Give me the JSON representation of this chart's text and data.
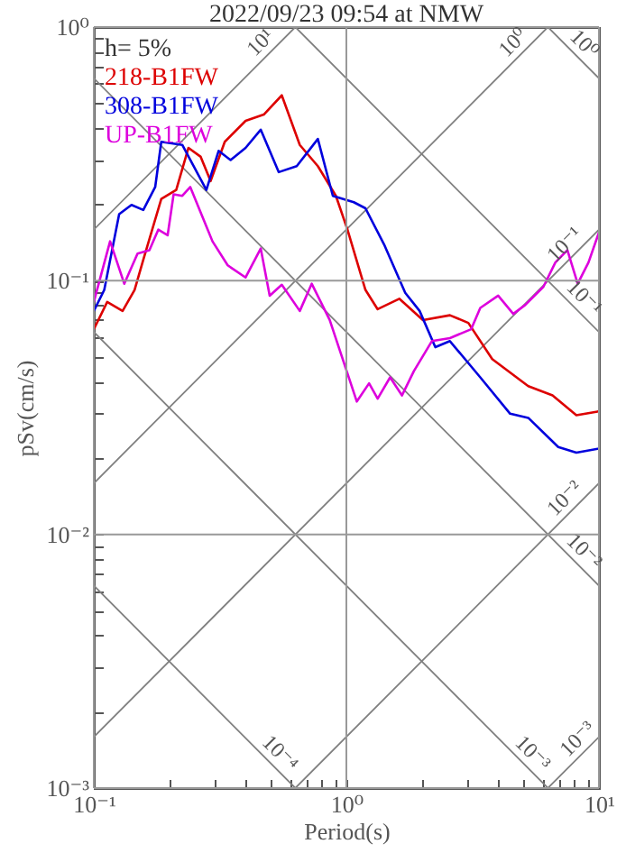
{
  "chart_data": {
    "type": "line",
    "title": "2022/09/23 09:54 at NMW",
    "xlabel": "Period(s)",
    "ylabel": "pSv(cm/s)",
    "legend_title": "h= 5%",
    "legend": "top left",
    "grid": true,
    "log": "xy",
    "xlim": [
      0.1,
      10
    ],
    "ylim": [
      0.001,
      1
    ],
    "xticks": [
      {
        "value": 0.1,
        "label": "10⁻¹"
      },
      {
        "value": 0.2,
        "label": null
      },
      {
        "value": 0.3,
        "label": null
      },
      {
        "value": 0.4,
        "label": null
      },
      {
        "value": 0.5,
        "label": null
      },
      {
        "value": 0.6,
        "label": null
      },
      {
        "value": 0.7,
        "label": null
      },
      {
        "value": 0.8,
        "label": null
      },
      {
        "value": 0.9,
        "label": null
      },
      {
        "value": 1,
        "label": "10⁰"
      },
      {
        "value": 2,
        "label": null
      },
      {
        "value": 3,
        "label": null
      },
      {
        "value": 4,
        "label": null
      },
      {
        "value": 5,
        "label": null
      },
      {
        "value": 6,
        "label": null
      },
      {
        "value": 7,
        "label": null
      },
      {
        "value": 8,
        "label": null
      },
      {
        "value": 9,
        "label": null
      },
      {
        "value": 10,
        "label": "10¹"
      }
    ],
    "yticks": [
      {
        "value": 0.001,
        "label": "10⁻³"
      },
      {
        "value": 0.002,
        "label": null
      },
      {
        "value": 0.003,
        "label": null
      },
      {
        "value": 0.004,
        "label": null
      },
      {
        "value": 0.005,
        "label": null
      },
      {
        "value": 0.006,
        "label": null
      },
      {
        "value": 0.007,
        "label": null
      },
      {
        "value": 0.008,
        "label": null
      },
      {
        "value": 0.009,
        "label": null
      },
      {
        "value": 0.01,
        "label": "10⁻²"
      },
      {
        "value": 0.02,
        "label": null
      },
      {
        "value": 0.03,
        "label": null
      },
      {
        "value": 0.04,
        "label": null
      },
      {
        "value": 0.05,
        "label": null
      },
      {
        "value": 0.06,
        "label": null
      },
      {
        "value": 0.07,
        "label": null
      },
      {
        "value": 0.08,
        "label": null
      },
      {
        "value": 0.09,
        "label": null
      },
      {
        "value": 0.1,
        "label": "10⁻¹"
      },
      {
        "value": 0.2,
        "label": null
      },
      {
        "value": 0.3,
        "label": null
      },
      {
        "value": 0.4,
        "label": null
      },
      {
        "value": 0.5,
        "label": null
      },
      {
        "value": 0.6,
        "label": null
      },
      {
        "value": 0.7,
        "label": null
      },
      {
        "value": 0.8,
        "label": null
      },
      {
        "value": 0.9,
        "label": null
      },
      {
        "value": 1,
        "label": "10⁰"
      }
    ],
    "series": [
      {
        "color": "#808080",
        "x": [
          0.1,
          0.628
        ],
        "values": [
          0.159,
          1
        ]
      },
      {
        "color": "#808080",
        "x": [
          0.1,
          6.28
        ],
        "values": [
          0.0159,
          1
        ]
      },
      {
        "color": "#808080",
        "x": [
          0.1,
          10
        ],
        "values": [
          0.00159,
          0.159
        ]
      },
      {
        "color": "#808080",
        "x": [
          0.628,
          10
        ],
        "values": [
          0.001,
          0.0159
        ]
      },
      {
        "color": "#808080",
        "x": [
          6.28,
          10
        ],
        "values": [
          0.001,
          0.00159
        ]
      },
      {
        "color": "#808080",
        "x": [
          6.28,
          10
        ],
        "values": [
          1,
          0.628
        ]
      },
      {
        "color": "#808080",
        "x": [
          0.628,
          10
        ],
        "values": [
          1,
          0.0628
        ]
      },
      {
        "color": "#808080",
        "x": [
          0.1,
          10
        ],
        "values": [
          0.628,
          0.00628
        ]
      },
      {
        "color": "#808080",
        "x": [
          0.1,
          6.28
        ],
        "values": [
          0.0628,
          0.001
        ]
      },
      {
        "color": "#808080",
        "x": [
          0.1,
          0.628
        ],
        "values": [
          0.00628,
          0.001
        ]
      },
      {
        "name": "218-B1FW",
        "color": "#dd0000",
        "x": [
          0.1,
          0.113,
          0.13,
          0.145,
          0.157,
          0.185,
          0.212,
          0.237,
          0.265,
          0.29,
          0.33,
          0.399,
          0.471,
          0.555,
          0.654,
          0.771,
          0.909,
          1.01,
          1.19,
          1.33,
          1.62,
          2.01,
          2.57,
          3.04,
          3.78,
          5.25,
          6.55,
          8.14,
          9.87
        ],
        "values": [
          0.0644,
          0.0825,
          0.076,
          0.092,
          0.121,
          0.21,
          0.228,
          0.334,
          0.308,
          0.247,
          0.353,
          0.427,
          0.452,
          0.538,
          0.343,
          0.283,
          0.216,
          0.159,
          0.092,
          0.0772,
          0.0849,
          0.07,
          0.0731,
          0.0682,
          0.0491,
          0.0384,
          0.0353,
          0.0295,
          0.0305
        ]
      },
      {
        "name": "308-B1FW",
        "color": "#0000dd",
        "x": [
          0.1,
          0.11,
          0.126,
          0.141,
          0.157,
          0.175,
          0.185,
          0.224,
          0.279,
          0.312,
          0.348,
          0.399,
          0.458,
          0.54,
          0.636,
          0.771,
          0.884,
          1.07,
          1.19,
          1.41,
          1.71,
          1.95,
          2.25,
          2.57,
          3.39,
          4.45,
          5.25,
          6.9,
          8.14,
          10
        ],
        "values": [
          0.076,
          0.092,
          0.183,
          0.199,
          0.19,
          0.234,
          0.353,
          0.343,
          0.228,
          0.325,
          0.299,
          0.334,
          0.394,
          0.268,
          0.283,
          0.362,
          0.216,
          0.204,
          0.193,
          0.139,
          0.0896,
          0.076,
          0.0547,
          0.0578,
          0.0416,
          0.0299,
          0.0288,
          0.0221,
          0.021,
          0.0218
        ]
      },
      {
        "name": "UP-B1FW",
        "color": "#dd00dd",
        "x": [
          0.1,
          0.116,
          0.132,
          0.149,
          0.166,
          0.18,
          0.196,
          0.207,
          0.224,
          0.241,
          0.295,
          0.339,
          0.399,
          0.458,
          0.497,
          0.555,
          0.654,
          0.729,
          0.859,
          1.1,
          1.23,
          1.33,
          1.49,
          1.66,
          1.85,
          2.18,
          2.57,
          3.12,
          3.39,
          3.99,
          4.58,
          5.11,
          6.03,
          6.72,
          7.5,
          8.24,
          9.09,
          10
        ],
        "values": [
          0.0825,
          0.143,
          0.0973,
          0.128,
          0.132,
          0.159,
          0.151,
          0.219,
          0.216,
          0.234,
          0.143,
          0.115,
          0.103,
          0.134,
          0.0873,
          0.0964,
          0.076,
          0.0973,
          0.07,
          0.0334,
          0.0394,
          0.0343,
          0.0416,
          0.0353,
          0.044,
          0.0578,
          0.0594,
          0.0644,
          0.0781,
          0.0873,
          0.074,
          0.0803,
          0.0947,
          0.118,
          0.132,
          0.0973,
          0.118,
          0.155
        ]
      }
    ],
    "annotations": [
      {
        "text": "10¹",
        "x": 0.5,
        "y": 0.796
      },
      {
        "text": "10⁰",
        "x": 5,
        "y": 0.796
      },
      {
        "text": "10⁰",
        "x": 8,
        "y": 0.785
      },
      {
        "text": "10⁻¹",
        "x": 8,
        "y": 0.127
      },
      {
        "text": "10⁻¹",
        "x": 8,
        "y": 0.0785
      },
      {
        "text": "10⁻²",
        "x": 8,
        "y": 0.0127
      },
      {
        "text": "10⁻²",
        "x": 8,
        "y": 0.00785
      },
      {
        "text": "10⁻³",
        "x": 9,
        "y": 0.00143
      },
      {
        "text": "10⁻³",
        "x": 5,
        "y": 0.001256
      },
      {
        "text": "10⁻⁴",
        "x": 0.5,
        "y": 0.001256
      }
    ]
  }
}
